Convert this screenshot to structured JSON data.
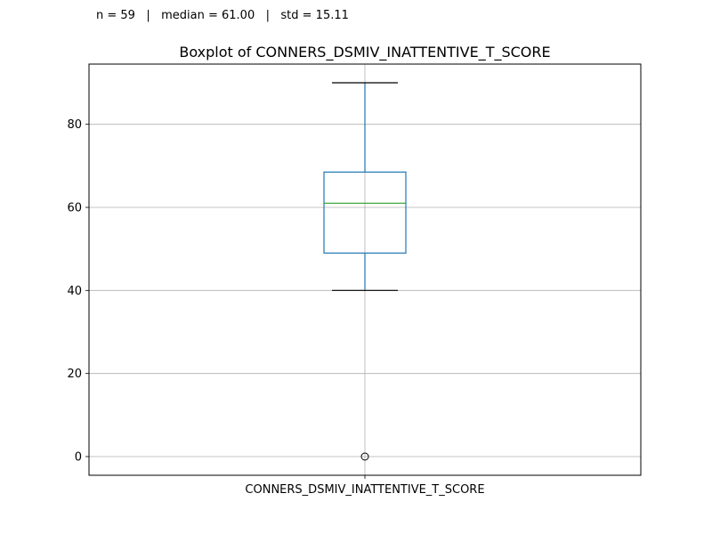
{
  "stats_text": "n = 59   |   median = 61.00   |   std = 15.11",
  "chart_data": {
    "type": "boxplot",
    "title": "Boxplot of CONNERS_DSMIV_INATTENTIVE_T_SCORE",
    "categories": [
      "CONNERS_DSMIV_INATTENTIVE_T_SCORE"
    ],
    "boxes": [
      {
        "name": "CONNERS_DSMIV_INATTENTIVE_T_SCORE",
        "whisker_low": 40,
        "q1": 49,
        "median": 61,
        "q3": 68.5,
        "whisker_high": 90,
        "outliers": [
          0
        ]
      }
    ],
    "ylim": [
      -4.5,
      94.5
    ],
    "yticks": [
      0,
      20,
      40,
      60,
      80
    ],
    "grid": true,
    "colors": {
      "box": "#1f77b4",
      "median": "#2ca02c",
      "whisker_cap": "#000000",
      "grid": "#b0b0b0"
    }
  }
}
